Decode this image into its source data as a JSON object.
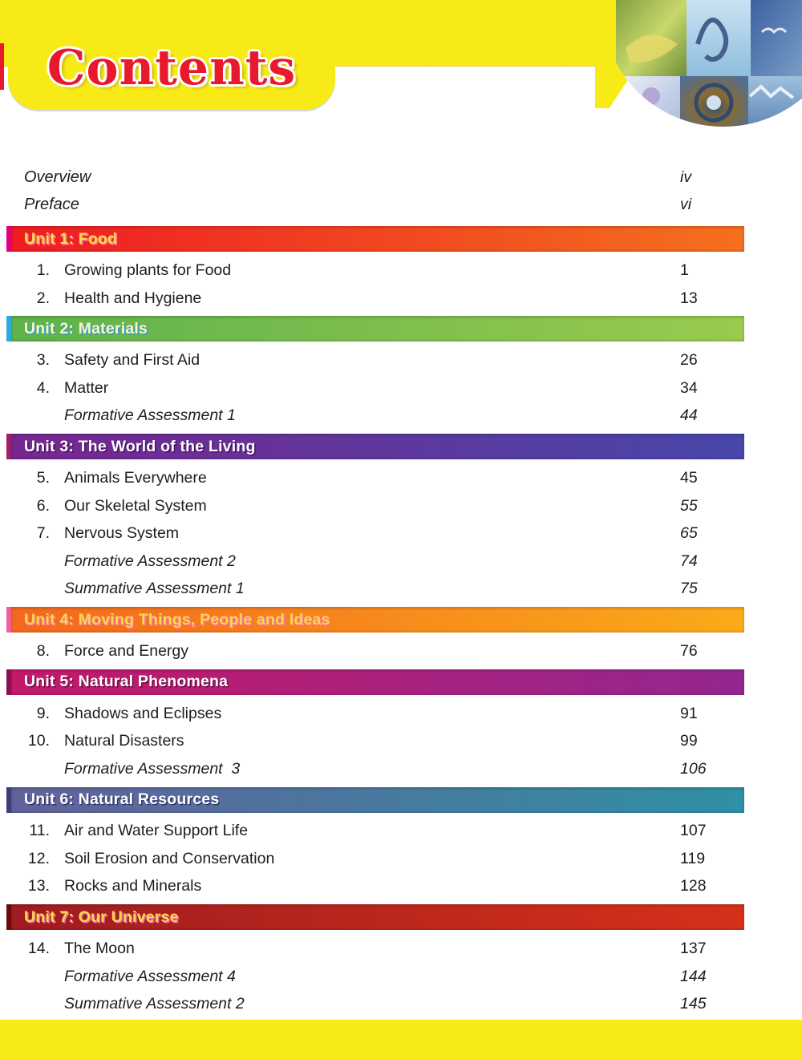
{
  "title": "Contents",
  "colors": {
    "frame_yellow": "#f7ea16",
    "title_red": "#e8192c",
    "body_text": "#1d1d1b"
  },
  "front_matter": [
    {
      "title": "Overview",
      "page": "iv"
    },
    {
      "title": "Preface",
      "page": "vi"
    }
  ],
  "sections": [
    {
      "label": "Unit 1: Food",
      "bar": {
        "from": "#ee1c23",
        "to": "#f4701e",
        "edge": "#e6007e",
        "text_color": "#ffd84d",
        "text_shadow": "#ff7bac"
      },
      "entries": [
        {
          "num": "1.",
          "title": "Growing plants for Food",
          "page": "1"
        },
        {
          "num": "2.",
          "title": "Health and Hygiene",
          "page": "13"
        }
      ]
    },
    {
      "label": "Unit 2: Materials",
      "bar": {
        "from": "#5fb24c",
        "to": "#9aca4f",
        "edge": "#29abe2",
        "text_color": "#fff6c8",
        "text_shadow": "#2e9fd4"
      },
      "entries": [
        {
          "num": "3.",
          "title": "Safety and First Aid",
          "page": "26"
        },
        {
          "num": "4.",
          "title": "Matter",
          "page": "34"
        },
        {
          "italic": true,
          "title": "Formative Assessment 1",
          "page": "44"
        }
      ]
    },
    {
      "label": "Unit 3: The World of the Living",
      "bar": {
        "from": "#76278f",
        "to": "#4847aa",
        "edge": "#9e1f63",
        "text_color": "#ffffff",
        "text_shadow": "#4a1060"
      },
      "entries": [
        {
          "num": "5.",
          "title": "Animals Everywhere",
          "page": "45"
        },
        {
          "num": "6.",
          "title": "Our Skeletal System",
          "page": "55",
          "italic_page": true
        },
        {
          "num": "7.",
          "title": "Nervous System",
          "page": "65",
          "italic_page": true
        },
        {
          "italic": true,
          "title": "Formative Assessment 2",
          "page": "74"
        },
        {
          "italic": true,
          "title": "Summative Assessment 1",
          "page": "75"
        }
      ]
    },
    {
      "label": "Unit 4: Moving Things, People and Ideas",
      "bar": {
        "from": "#f3681f",
        "to": "#fbaa19",
        "edge": "#f0609e",
        "text_color": "#ffd84d",
        "text_shadow": "#f973b0"
      },
      "entries": [
        {
          "num": "8.",
          "title": "Force and Energy",
          "page": "76"
        }
      ]
    },
    {
      "label": "Unit 5: Natural Phenomena",
      "bar": {
        "from": "#c21a6a",
        "to": "#93278f",
        "edge": "#8c0e53",
        "text_color": "#ffffff",
        "text_shadow": "#6d0a42"
      },
      "entries": [
        {
          "num": "9.",
          "title": "Shadows and Eclipses",
          "page": "91"
        },
        {
          "num": "10.",
          "title": "Natural Disasters",
          "page": "99"
        },
        {
          "italic": true,
          "title": "Formative Assessment  3",
          "page": "106"
        }
      ]
    },
    {
      "label": "Unit 6: Natural Resources",
      "bar": {
        "from": "#62629a",
        "to": "#2f90a5",
        "edge": "#3c3e78",
        "text_color": "#ffffff",
        "text_shadow": "#35356b"
      },
      "entries": [
        {
          "num": "11.",
          "title": "Air and Water Support Life",
          "page": "107"
        },
        {
          "num": "12.",
          "title": "Soil Erosion and Conservation",
          "page": "119"
        },
        {
          "num": "13.",
          "title": "Rocks and Minerals",
          "page": "128"
        }
      ]
    },
    {
      "label": "Unit 7: Our Universe",
      "bar": {
        "from": "#9f1c20",
        "to": "#d5311a",
        "edge": "#70090c",
        "text_color": "#ffd84d",
        "text_shadow": "#f06eaa"
      },
      "entries": [
        {
          "num": "14.",
          "title": "The Moon",
          "page": "137"
        },
        {
          "italic": true,
          "title": "Formative Assessment 4",
          "page": "144"
        },
        {
          "italic": true,
          "title": "Summative Assessment 2",
          "page": "145"
        }
      ]
    }
  ],
  "collage": {
    "tiles": [
      "garden-photo",
      "dolphin-photo",
      "seabird-photo",
      "child-photo",
      "eye-photo",
      "lake-photo"
    ]
  }
}
